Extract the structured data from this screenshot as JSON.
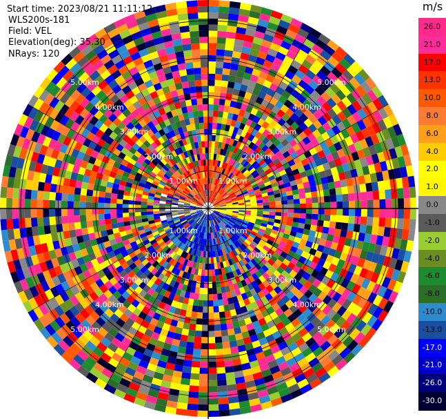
{
  "info": {
    "start_time": "Start time: 2023/08/21 11:11:12",
    "instrument": "WLS200s-181",
    "field": "Field: VEL",
    "elevation": "Elevation(deg): 35.30",
    "nrays": "NRays: 120"
  },
  "colorbar": {
    "unit": "m/s",
    "ticks": [
      "26.0",
      "21.0",
      "17.0",
      "13.0",
      "10.0",
      "8.0",
      "6.0",
      "4.0",
      "2.0",
      "1.0",
      "0.0",
      "-1.0",
      "-2.0",
      "-4.0",
      "-6.0",
      "-8.0",
      "-10.0",
      "-13.0",
      "-17.0",
      "-21.0",
      "-26.0",
      "-30.0"
    ],
    "colors": [
      "#ff2a8c",
      "#ff2d9a",
      "#ff0000",
      "#ff3300",
      "#ff5a00",
      "#ff7a33",
      "#ff9f1a",
      "#ffcc00",
      "#ffff00",
      "#fff700",
      "#888888",
      "#5a5a5a",
      "#9acd32",
      "#6b8e23",
      "#1e8b2e",
      "#2a6e2a",
      "#2e8bce",
      "#1a4ea0",
      "#0000ff",
      "#0000cc",
      "#00007a",
      "#000033"
    ]
  },
  "chart_data": {
    "type": "heatmap",
    "projection": "polar PPI",
    "field": "VEL",
    "units": "m/s",
    "elevation_deg": 35.3,
    "nrays": 120,
    "range_ring_labels": [
      "1.00km",
      "2.00km",
      "3.00km",
      "4.00km",
      "5.00km"
    ],
    "range_rings_km": [
      1,
      2,
      3,
      4,
      5
    ],
    "colorbar_ticks": [
      26.0,
      21.0,
      17.0,
      13.0,
      10.0,
      8.0,
      6.0,
      4.0,
      2.0,
      1.0,
      0.0,
      -1.0,
      -2.0,
      -4.0,
      -6.0,
      -8.0,
      -10.0,
      -13.0,
      -17.0,
      -21.0,
      -26.0,
      -30.0
    ],
    "value_range": [
      -30.0,
      26.0
    ],
    "near_field_pattern": {
      "north_sector": "positive velocities (≈8 to 17 m/s, orange-red)",
      "east_sector": "≈2 to 4 m/s (yellow)",
      "south_sector": "negative velocities (≈-17 to -21 m/s, blue)",
      "beyond_1.5km": "noisy, full range of values"
    }
  }
}
